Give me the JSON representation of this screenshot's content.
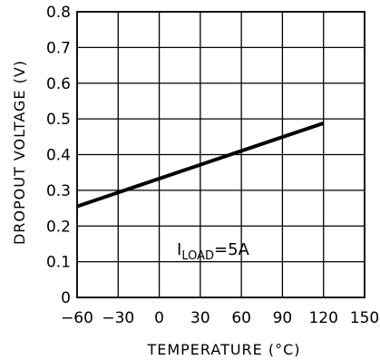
{
  "chart_data": {
    "type": "line",
    "xlabel": "TEMPERATURE (°C)",
    "ylabel": "DROPOUT VOLTAGE (V)",
    "xlim": [
      -60,
      150
    ],
    "ylim": [
      0,
      0.8
    ],
    "xticks": [
      -60,
      -30,
      0,
      30,
      60,
      90,
      120,
      150
    ],
    "xtick_labels": [
      "−60",
      "−30",
      "0",
      "30",
      "60",
      "90",
      "120",
      "150"
    ],
    "yticks": [
      0,
      0.1,
      0.2,
      0.3,
      0.4,
      0.5,
      0.6,
      0.7,
      0.8
    ],
    "ytick_labels": [
      "0",
      "0.1",
      "0.2",
      "0.3",
      "0.4",
      "0.5",
      "0.6",
      "0.7",
      "0.8"
    ],
    "grid": true,
    "series": [
      {
        "x": [
          -60,
          120
        ],
        "y": [
          0.255,
          0.488
        ],
        "color": "#000000"
      }
    ],
    "annotation": {
      "prefix": "I",
      "subscript": "LOAD",
      "suffix": "=5A"
    }
  }
}
